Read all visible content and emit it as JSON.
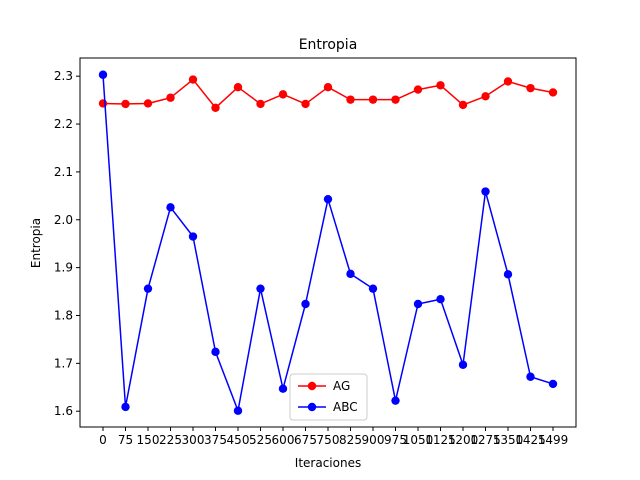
{
  "chart_data": {
    "type": "line",
    "title": "Entropia",
    "xlabel": "Iteraciones",
    "ylabel": "Entropia",
    "x": [
      0,
      75,
      150,
      225,
      300,
      375,
      450,
      525,
      600,
      675,
      750,
      825,
      900,
      975,
      1050,
      1125,
      1200,
      1275,
      1350,
      1425,
      1499
    ],
    "x_tick_labels": [
      "0",
      "75",
      "150",
      "225",
      "300",
      "375",
      "450",
      "525",
      "600",
      "675",
      "750",
      "825",
      "900",
      "975",
      "1050",
      "1125",
      "1200",
      "1275",
      "1350",
      "1425",
      "1499"
    ],
    "y_ticks": [
      1.6,
      1.7,
      1.8,
      1.9,
      2.0,
      2.1,
      2.2,
      2.3
    ],
    "y_tick_labels": [
      "1.6",
      "1.7",
      "1.8",
      "1.9",
      "2.0",
      "2.1",
      "2.2",
      "2.3"
    ],
    "ylim": [
      1.567,
      2.338
    ],
    "grid": false,
    "legend_position": "lower-center",
    "series": [
      {
        "name": "AG",
        "color": "#ff0000",
        "marker": "circle",
        "values": [
          2.243,
          2.242,
          2.243,
          2.255,
          2.293,
          2.234,
          2.277,
          2.242,
          2.262,
          2.242,
          2.277,
          2.251,
          2.251,
          2.251,
          2.272,
          2.281,
          2.24,
          2.258,
          2.289,
          2.275,
          2.266
        ]
      },
      {
        "name": "ABC",
        "color": "#0000ff",
        "marker": "circle",
        "values": [
          2.303,
          1.609,
          1.856,
          2.026,
          1.965,
          1.724,
          1.601,
          1.856,
          1.647,
          1.824,
          2.043,
          1.887,
          1.856,
          1.622,
          1.824,
          1.834,
          1.697,
          2.059,
          1.886,
          1.672,
          1.657
        ]
      }
    ]
  }
}
